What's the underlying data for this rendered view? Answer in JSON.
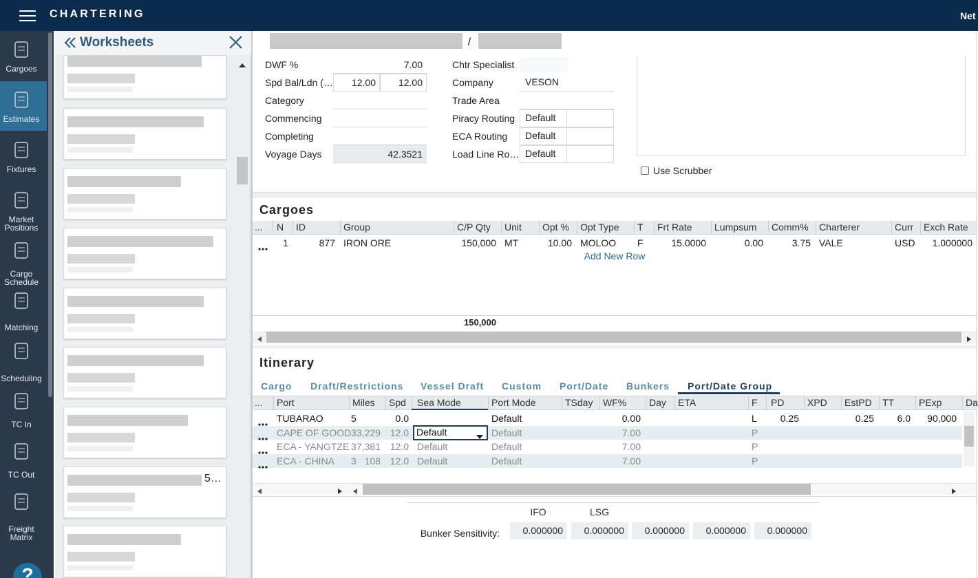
{
  "header": {
    "app_title": "CHARTERING",
    "user": "Net"
  },
  "nav": {
    "items": [
      "Cargoes",
      "Estimates",
      "Fixtures",
      "Market Positions",
      "Cargo Schedule",
      "Matching",
      "Scheduling",
      "TC In",
      "TC Out",
      "Freight Matrix"
    ]
  },
  "worksheets": {
    "title": "Worksheets",
    "truncated_text": "5…"
  },
  "voyage_header": {
    "separator": "/"
  },
  "form": {
    "left": [
      {
        "label": "DWF %",
        "values": [
          "7.00"
        ]
      },
      {
        "label": "Spd Bal/Ldn (…",
        "values": [
          "12.00",
          "12.00"
        ]
      },
      {
        "label": "Category",
        "values": []
      },
      {
        "label": "Commencing",
        "values": []
      },
      {
        "label": "Completing",
        "values": []
      },
      {
        "label": "Voyage Days",
        "values": [
          "42.3521"
        ]
      }
    ],
    "right": [
      {
        "label": "Chtr Specialist",
        "values": []
      },
      {
        "label": "Company",
        "values": [
          "VESON"
        ]
      },
      {
        "label": "Trade Area",
        "values": []
      },
      {
        "label": "Piracy Routing",
        "values": [
          "Default"
        ]
      },
      {
        "label": "ECA Routing",
        "values": [
          "Default"
        ]
      },
      {
        "label": "Load Line Ro…",
        "values": [
          "Default"
        ]
      }
    ],
    "checkbox": "Use Scrubber"
  },
  "cargoes": {
    "title": "Cargoes",
    "columns": [
      "...",
      "N",
      "ID",
      "Group",
      "C/P Qty",
      "Unit",
      "Opt %",
      "Opt Type",
      "T",
      "Frt Rate",
      "Lumpsum",
      "Comm%",
      "Charterer",
      "Curr",
      "Exch Rate"
    ],
    "rows": [
      [
        "1",
        "877",
        "IRON ORE",
        "150,000",
        "MT",
        "10.00",
        "MOLOO",
        "F",
        "15.0000",
        "0.00",
        "3.75",
        "VALE",
        "USD",
        "1.000000"
      ]
    ],
    "add_row": "Add New Row",
    "total_qty": "150,000"
  },
  "itinerary": {
    "title": "Itinerary",
    "tabs": [
      "Cargo",
      "Draft/Restrictions",
      "Vessel Draft",
      "Custom",
      "Port/Date",
      "Bunkers",
      "Port/Date Group"
    ],
    "columns": [
      "...",
      "Port",
      "Miles",
      "Spd",
      "Sea Mode",
      "Port Mode",
      "TSday",
      "WF%",
      "Day",
      "ETA",
      "F",
      "PD",
      "XPD",
      "EstPD",
      "TT",
      "PExp",
      "Da"
    ],
    "rows": [
      {
        "port": "TUBARAO",
        "miles_prefix": "5",
        "spd": "0.0",
        "port_mode": "Default",
        "wf": "0.00",
        "f": "L",
        "pd": "0.25",
        "estpd": "0.25",
        "tt": "6.0",
        "pexp": "90,000"
      },
      {
        "port": "CAPE OF GOOD",
        "miles_prefix": "3",
        "miles": "3,229",
        "spd": "12.0",
        "sea_mode": "Default",
        "port_mode": "Default",
        "wf": "7.00",
        "f": "P"
      },
      {
        "port": "ECA - YANGTZE",
        "miles_prefix": "3",
        "miles": "7,381",
        "spd": "12.0",
        "sea_mode": "Default",
        "port_mode": "Default",
        "wf": "7.00",
        "f": "P"
      },
      {
        "port": "ECA - CHINA",
        "miles_prefix": "3",
        "miles": "108",
        "spd": "12.0",
        "sea_mode": "Default",
        "port_mode": "Default",
        "wf": "7.00",
        "f": "P"
      }
    ]
  },
  "bunkers": {
    "label": "Bunker Sensitivity:",
    "fuel_headers": [
      "IFO",
      "LSG"
    ],
    "values": [
      "0.000000",
      "0.000000",
      "0.000000",
      "0.000000",
      "0.000000"
    ]
  }
}
